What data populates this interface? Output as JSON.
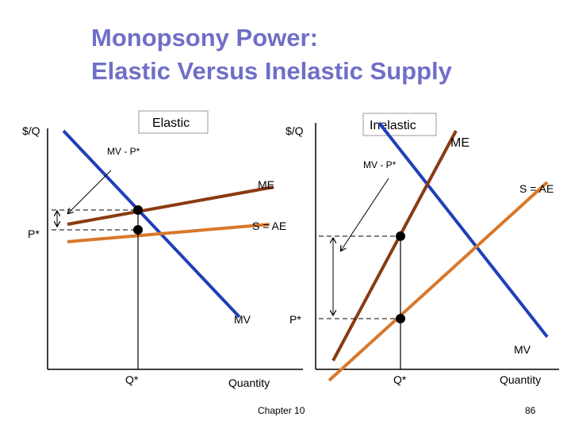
{
  "header": {
    "title_line1": "Monopsony Power:",
    "title_line2": "Elastic Versus Inelastic Supply"
  },
  "left_panel": {
    "tag": "Elastic",
    "y_axis_label": "$/Q",
    "gap_label": "MV - P*",
    "me_label": "ME",
    "supply_label": "S = AE",
    "mv_label": "MV",
    "price_label": "P*",
    "quantity_label": "Q*",
    "x_axis_label": "Quantity"
  },
  "right_panel": {
    "tag": "Inelastic",
    "y_axis_label": "$/Q",
    "gap_label": "MV - P*",
    "me_label": "ME",
    "supply_label": "S = AE",
    "mv_label": "MV",
    "price_label": "P*",
    "quantity_label": "Q*",
    "x_axis_label": "Quantity"
  },
  "footer": {
    "chapter": "Chapter 10",
    "page": "86"
  }
}
